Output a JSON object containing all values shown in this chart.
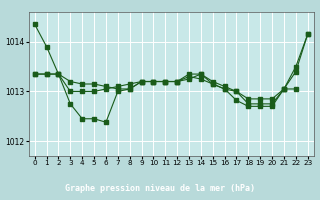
{
  "title": "Graphe pression niveau de la mer (hPa)",
  "bg_color": "#b8dada",
  "plot_bg_color": "#c8e8e8",
  "grid_color": "#ffffff",
  "line_color": "#1a5c1a",
  "label_bg_color": "#2d6e2d",
  "label_text_color": "#ffffff",
  "xlim_min": -0.5,
  "xlim_max": 23.5,
  "ylim_min": 1011.7,
  "ylim_max": 1014.6,
  "yticks": [
    1012,
    1013,
    1014
  ],
  "xticks": [
    0,
    1,
    2,
    3,
    4,
    5,
    6,
    7,
    8,
    9,
    10,
    11,
    12,
    13,
    14,
    15,
    16,
    17,
    18,
    19,
    20,
    21,
    22,
    23
  ],
  "series": [
    [
      1014.35,
      1013.9,
      1013.35,
      1013.0,
      1013.0,
      1013.0,
      1013.05,
      1013.1,
      1013.15,
      1013.2,
      1013.2,
      1013.2,
      1013.2,
      1013.25,
      1013.35,
      1013.2,
      1013.1,
      1013.0,
      1012.85,
      1012.85,
      1012.85,
      1013.05,
      1013.4,
      1014.15
    ],
    [
      1013.35,
      1013.35,
      1013.35,
      1012.75,
      1012.45,
      1012.45,
      1012.38,
      1013.0,
      1013.05,
      1013.2,
      1013.2,
      1013.2,
      1013.2,
      1013.35,
      1013.35,
      1013.15,
      1013.05,
      1012.82,
      1012.7,
      1012.7,
      1012.7,
      1013.05,
      1013.5,
      1014.15
    ],
    [
      1013.35,
      1013.35,
      1013.35,
      1013.2,
      1013.15,
      1013.15,
      1013.1,
      1013.05,
      1013.05,
      1013.2,
      1013.2,
      1013.2,
      1013.2,
      1013.3,
      1013.25,
      1013.15,
      1013.05,
      1013.0,
      1012.75,
      1012.75,
      1012.75,
      1013.05,
      1013.05,
      null
    ]
  ],
  "title_fontsize": 6.0,
  "tick_fontsize": 5.2,
  "ytick_fontsize": 5.5,
  "linewidth": 0.8,
  "markersize": 2.2
}
